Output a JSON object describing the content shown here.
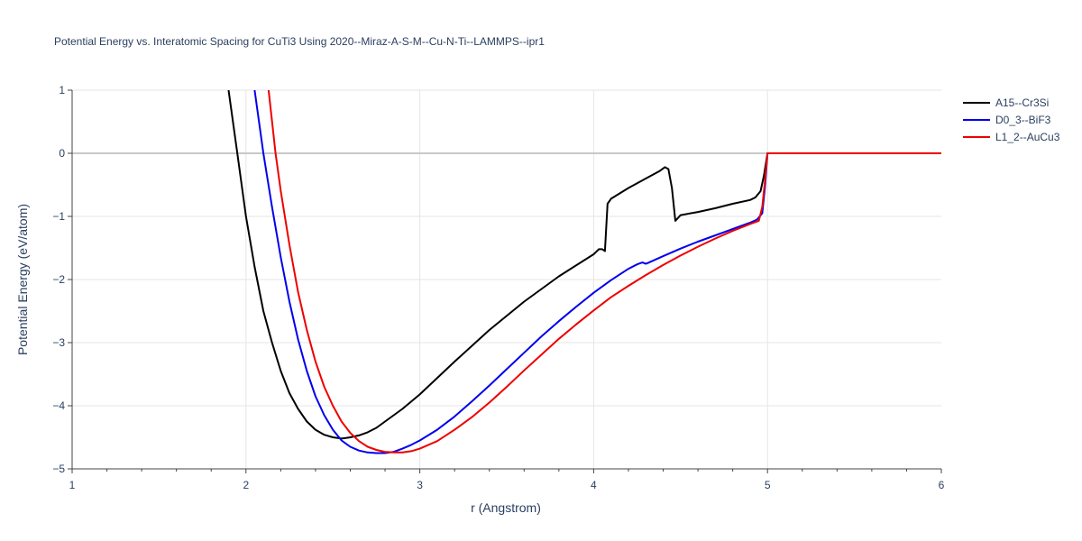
{
  "chart_data": {
    "type": "line",
    "title": "Potential Energy vs. Interatomic Spacing for CuTi3 Using 2020--Miraz-A-S-M--Cu-N-Ti--LAMMPS--ipr1",
    "xlabel": "r (Angstrom)",
    "ylabel": "Potential Energy (eV/atom)",
    "xlim": [
      1,
      6
    ],
    "ylim": [
      -5,
      1
    ],
    "x_ticks": [
      1,
      2,
      3,
      4,
      5,
      6
    ],
    "y_ticks": [
      1,
      0,
      -1,
      -2,
      -3,
      -4,
      -5
    ],
    "x_tick_labels": [
      "1",
      "2",
      "3",
      "4",
      "5",
      "6"
    ],
    "y_tick_labels": [
      "1",
      "0",
      "−1",
      "−2",
      "−3",
      "−4",
      "−5"
    ],
    "grid": true,
    "legend_position": "top-right",
    "series": [
      {
        "name": "A15--Cr3Si",
        "color": "#000000",
        "points": [
          [
            1.9,
            1.0
          ],
          [
            1.95,
            0.0
          ],
          [
            2.0,
            -1.0
          ],
          [
            2.05,
            -1.8
          ],
          [
            2.1,
            -2.5
          ],
          [
            2.15,
            -3.0
          ],
          [
            2.2,
            -3.45
          ],
          [
            2.25,
            -3.8
          ],
          [
            2.3,
            -4.05
          ],
          [
            2.35,
            -4.25
          ],
          [
            2.4,
            -4.38
          ],
          [
            2.45,
            -4.46
          ],
          [
            2.5,
            -4.5
          ],
          [
            2.55,
            -4.52
          ],
          [
            2.6,
            -4.5
          ],
          [
            2.65,
            -4.47
          ],
          [
            2.7,
            -4.42
          ],
          [
            2.75,
            -4.35
          ],
          [
            2.8,
            -4.25
          ],
          [
            2.9,
            -4.05
          ],
          [
            3.0,
            -3.82
          ],
          [
            3.2,
            -3.3
          ],
          [
            3.4,
            -2.8
          ],
          [
            3.6,
            -2.35
          ],
          [
            3.8,
            -1.95
          ],
          [
            4.0,
            -1.6
          ],
          [
            4.03,
            -1.52
          ],
          [
            4.05,
            -1.52
          ],
          [
            4.065,
            -1.55
          ],
          [
            4.08,
            -0.8
          ],
          [
            4.1,
            -0.72
          ],
          [
            4.2,
            -0.55
          ],
          [
            4.3,
            -0.4
          ],
          [
            4.38,
            -0.28
          ],
          [
            4.41,
            -0.22
          ],
          [
            4.43,
            -0.25
          ],
          [
            4.45,
            -0.55
          ],
          [
            4.47,
            -1.07
          ],
          [
            4.5,
            -0.98
          ],
          [
            4.6,
            -0.93
          ],
          [
            4.7,
            -0.87
          ],
          [
            4.8,
            -0.8
          ],
          [
            4.9,
            -0.74
          ],
          [
            4.93,
            -0.7
          ],
          [
            4.96,
            -0.6
          ],
          [
            4.98,
            -0.35
          ],
          [
            5.0,
            0.0
          ],
          [
            6.0,
            0.0
          ]
        ]
      },
      {
        "name": "D0_3--BiF3",
        "color": "#0000ee",
        "points": [
          [
            2.05,
            1.0
          ],
          [
            2.1,
            0.0
          ],
          [
            2.15,
            -0.85
          ],
          [
            2.2,
            -1.65
          ],
          [
            2.25,
            -2.35
          ],
          [
            2.3,
            -2.95
          ],
          [
            2.35,
            -3.45
          ],
          [
            2.4,
            -3.85
          ],
          [
            2.45,
            -4.15
          ],
          [
            2.5,
            -4.38
          ],
          [
            2.55,
            -4.55
          ],
          [
            2.6,
            -4.65
          ],
          [
            2.65,
            -4.71
          ],
          [
            2.7,
            -4.74
          ],
          [
            2.75,
            -4.75
          ],
          [
            2.8,
            -4.75
          ],
          [
            2.85,
            -4.73
          ],
          [
            2.9,
            -4.68
          ],
          [
            2.95,
            -4.62
          ],
          [
            3.0,
            -4.55
          ],
          [
            3.1,
            -4.38
          ],
          [
            3.2,
            -4.17
          ],
          [
            3.3,
            -3.93
          ],
          [
            3.4,
            -3.68
          ],
          [
            3.5,
            -3.42
          ],
          [
            3.6,
            -3.16
          ],
          [
            3.7,
            -2.9
          ],
          [
            3.8,
            -2.66
          ],
          [
            3.9,
            -2.43
          ],
          [
            4.0,
            -2.21
          ],
          [
            4.1,
            -2.01
          ],
          [
            4.2,
            -1.83
          ],
          [
            4.25,
            -1.76
          ],
          [
            4.28,
            -1.73
          ],
          [
            4.3,
            -1.75
          ],
          [
            4.31,
            -1.74
          ],
          [
            4.4,
            -1.63
          ],
          [
            4.5,
            -1.51
          ],
          [
            4.6,
            -1.4
          ],
          [
            4.7,
            -1.3
          ],
          [
            4.8,
            -1.2
          ],
          [
            4.9,
            -1.1
          ],
          [
            4.94,
            -1.05
          ],
          [
            4.97,
            -0.95
          ],
          [
            4.985,
            -0.55
          ],
          [
            5.0,
            0.0
          ],
          [
            6.0,
            0.0
          ]
        ]
      },
      {
        "name": "L1_2--AuCu3",
        "color": "#ee0000",
        "points": [
          [
            2.13,
            1.0
          ],
          [
            2.17,
            0.0
          ],
          [
            2.2,
            -0.6
          ],
          [
            2.25,
            -1.45
          ],
          [
            2.3,
            -2.2
          ],
          [
            2.35,
            -2.8
          ],
          [
            2.4,
            -3.3
          ],
          [
            2.45,
            -3.7
          ],
          [
            2.5,
            -4.0
          ],
          [
            2.55,
            -4.25
          ],
          [
            2.6,
            -4.43
          ],
          [
            2.65,
            -4.56
          ],
          [
            2.7,
            -4.65
          ],
          [
            2.75,
            -4.7
          ],
          [
            2.8,
            -4.73
          ],
          [
            2.85,
            -4.74
          ],
          [
            2.9,
            -4.74
          ],
          [
            2.95,
            -4.72
          ],
          [
            3.0,
            -4.68
          ],
          [
            3.1,
            -4.56
          ],
          [
            3.2,
            -4.38
          ],
          [
            3.3,
            -4.18
          ],
          [
            3.4,
            -3.95
          ],
          [
            3.5,
            -3.7
          ],
          [
            3.6,
            -3.44
          ],
          [
            3.7,
            -3.19
          ],
          [
            3.8,
            -2.94
          ],
          [
            3.9,
            -2.71
          ],
          [
            4.0,
            -2.49
          ],
          [
            4.1,
            -2.28
          ],
          [
            4.2,
            -2.1
          ],
          [
            4.3,
            -1.93
          ],
          [
            4.4,
            -1.77
          ],
          [
            4.5,
            -1.62
          ],
          [
            4.6,
            -1.48
          ],
          [
            4.7,
            -1.35
          ],
          [
            4.8,
            -1.23
          ],
          [
            4.9,
            -1.12
          ],
          [
            4.95,
            -1.07
          ],
          [
            4.97,
            -0.85
          ],
          [
            4.985,
            -0.45
          ],
          [
            5.0,
            0.0
          ],
          [
            6.0,
            0.0
          ]
        ]
      }
    ]
  }
}
